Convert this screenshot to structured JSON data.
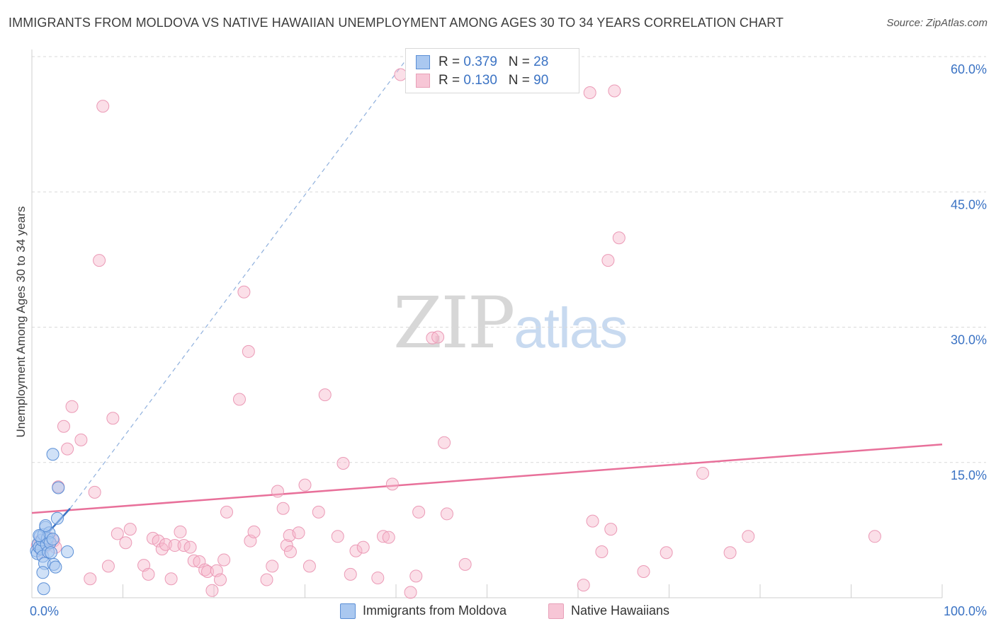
{
  "header": {
    "title": "IMMIGRANTS FROM MOLDOVA VS NATIVE HAWAIIAN UNEMPLOYMENT AMONG AGES 30 TO 34 YEARS CORRELATION CHART",
    "source": "Source: ZipAtlas.com"
  },
  "watermark": {
    "zip": "ZIP",
    "atlas": "atlas"
  },
  "legend": {
    "row1": {
      "r_label": "R =",
      "r_value": "0.379",
      "n_label": "N =",
      "n_value": "28"
    },
    "row2": {
      "r_label": "R =",
      "r_value": "0.130",
      "n_label": "N =",
      "n_value": "90"
    }
  },
  "colors": {
    "blue": "#5b8fd6",
    "blue_fill": "#aac8f0",
    "pink": "#e8709a",
    "pink_fill": "#f7b8cc",
    "grid": "#d9d9d9",
    "axis_tick_label": "#3b73c4"
  },
  "chart_data": {
    "type": "scatter",
    "title": "IMMIGRANTS FROM MOLDOVA VS NATIVE HAWAIIAN UNEMPLOYMENT AMONG AGES 30 TO 34 YEARS CORRELATION CHART",
    "xlabel": "",
    "ylabel": "Unemployment Among Ages 30 to 34 years",
    "xlim": [
      0,
      100
    ],
    "ylim": [
      0,
      63
    ],
    "x_tick_labels": [
      "0.0%",
      "100.0%"
    ],
    "y_ticks": [
      15,
      30,
      45,
      60
    ],
    "y_tick_labels": [
      "15.0%",
      "30.0%",
      "45.0%",
      "60.0%"
    ],
    "series": [
      {
        "name": "Immigrants from Moldova",
        "color": "#5b8fd6",
        "points": [
          [
            0.5,
            5.2
          ],
          [
            0.6,
            4.9
          ],
          [
            0.7,
            6.0
          ],
          [
            0.8,
            5.6
          ],
          [
            0.9,
            6.8
          ],
          [
            1.0,
            5.4
          ],
          [
            1.1,
            6.4
          ],
          [
            1.2,
            4.6
          ],
          [
            1.3,
            7.0
          ],
          [
            1.4,
            3.8
          ],
          [
            1.2,
            2.8
          ],
          [
            1.5,
            7.8
          ],
          [
            1.6,
            5.9
          ],
          [
            1.7,
            6.6
          ],
          [
            1.8,
            5.1
          ],
          [
            1.9,
            7.2
          ],
          [
            2.0,
            6.1
          ],
          [
            2.1,
            5.0
          ],
          [
            2.3,
            6.5
          ],
          [
            2.4,
            3.7
          ],
          [
            2.6,
            3.4
          ],
          [
            2.8,
            8.8
          ],
          [
            3.9,
            5.1
          ],
          [
            1.3,
            1.0
          ],
          [
            2.3,
            15.9
          ],
          [
            2.9,
            12.2
          ],
          [
            1.5,
            8.0
          ],
          [
            0.8,
            6.9
          ]
        ],
        "trend": {
          "x0": 0.5,
          "y0": 5.8,
          "x1": 4.2,
          "y1": 9.9
        },
        "trend_ext": {
          "x0": 4.2,
          "y0": 9.9,
          "x1": 41.0,
          "y1": 59.5
        }
      },
      {
        "name": "Native Hawaiians",
        "color": "#e8709a",
        "points": [
          [
            0.6,
            5.8
          ],
          [
            0.9,
            6.3
          ],
          [
            1.1,
            5.1
          ],
          [
            1.4,
            5.6
          ],
          [
            1.9,
            6.6
          ],
          [
            2.4,
            6.3
          ],
          [
            2.6,
            5.6
          ],
          [
            2.9,
            12.3
          ],
          [
            3.5,
            19.0
          ],
          [
            3.9,
            16.5
          ],
          [
            4.4,
            21.2
          ],
          [
            5.4,
            17.5
          ],
          [
            6.4,
            2.1
          ],
          [
            6.9,
            11.7
          ],
          [
            7.4,
            37.4
          ],
          [
            7.8,
            54.5
          ],
          [
            8.4,
            3.5
          ],
          [
            8.9,
            19.9
          ],
          [
            9.4,
            7.1
          ],
          [
            10.3,
            6.1
          ],
          [
            10.8,
            7.6
          ],
          [
            12.3,
            3.6
          ],
          [
            12.8,
            2.6
          ],
          [
            13.3,
            6.6
          ],
          [
            13.9,
            6.3
          ],
          [
            14.3,
            5.4
          ],
          [
            14.7,
            5.9
          ],
          [
            15.3,
            2.1
          ],
          [
            15.7,
            5.8
          ],
          [
            16.3,
            7.3
          ],
          [
            16.7,
            5.8
          ],
          [
            17.4,
            5.6
          ],
          [
            17.8,
            4.1
          ],
          [
            18.4,
            4.0
          ],
          [
            19.0,
            3.1
          ],
          [
            19.3,
            2.9
          ],
          [
            19.8,
            0.8
          ],
          [
            20.3,
            3.0
          ],
          [
            20.7,
            2.0
          ],
          [
            21.1,
            4.2
          ],
          [
            21.4,
            9.5
          ],
          [
            22.8,
            22.0
          ],
          [
            23.3,
            33.9
          ],
          [
            23.8,
            27.3
          ],
          [
            24.0,
            6.3
          ],
          [
            24.4,
            7.3
          ],
          [
            25.8,
            2.0
          ],
          [
            26.4,
            3.5
          ],
          [
            27.0,
            11.8
          ],
          [
            27.6,
            9.9
          ],
          [
            28.0,
            5.8
          ],
          [
            28.4,
            5.1
          ],
          [
            28.3,
            6.9
          ],
          [
            29.3,
            7.2
          ],
          [
            30.0,
            12.5
          ],
          [
            30.5,
            3.5
          ],
          [
            31.5,
            9.5
          ],
          [
            32.2,
            22.5
          ],
          [
            33.6,
            6.8
          ],
          [
            34.2,
            14.9
          ],
          [
            35.0,
            2.6
          ],
          [
            35.6,
            5.2
          ],
          [
            36.4,
            5.6
          ],
          [
            38.0,
            2.2
          ],
          [
            38.6,
            6.8
          ],
          [
            39.2,
            6.7
          ],
          [
            39.6,
            12.6
          ],
          [
            40.5,
            58.0
          ],
          [
            41.6,
            0.6
          ],
          [
            42.2,
            2.4
          ],
          [
            42.5,
            9.5
          ],
          [
            44.0,
            28.8
          ],
          [
            44.6,
            28.9
          ],
          [
            45.3,
            17.2
          ],
          [
            45.6,
            9.3
          ],
          [
            47.6,
            3.7
          ],
          [
            61.3,
            56.0
          ],
          [
            60.6,
            1.4
          ],
          [
            61.6,
            8.5
          ],
          [
            62.6,
            5.1
          ],
          [
            63.6,
            7.6
          ],
          [
            63.3,
            37.4
          ],
          [
            64.0,
            56.2
          ],
          [
            64.5,
            39.9
          ],
          [
            67.2,
            2.9
          ],
          [
            69.7,
            5.0
          ],
          [
            73.7,
            13.8
          ],
          [
            76.7,
            5.0
          ],
          [
            78.7,
            6.8
          ],
          [
            92.6,
            6.8
          ]
        ],
        "trend": {
          "x0": 0.0,
          "y0": 9.4,
          "x1": 100.0,
          "y1": 17.0
        }
      }
    ]
  },
  "bottom_legend": {
    "item1": "Immigrants from Moldova",
    "item2": "Native Hawaiians"
  }
}
